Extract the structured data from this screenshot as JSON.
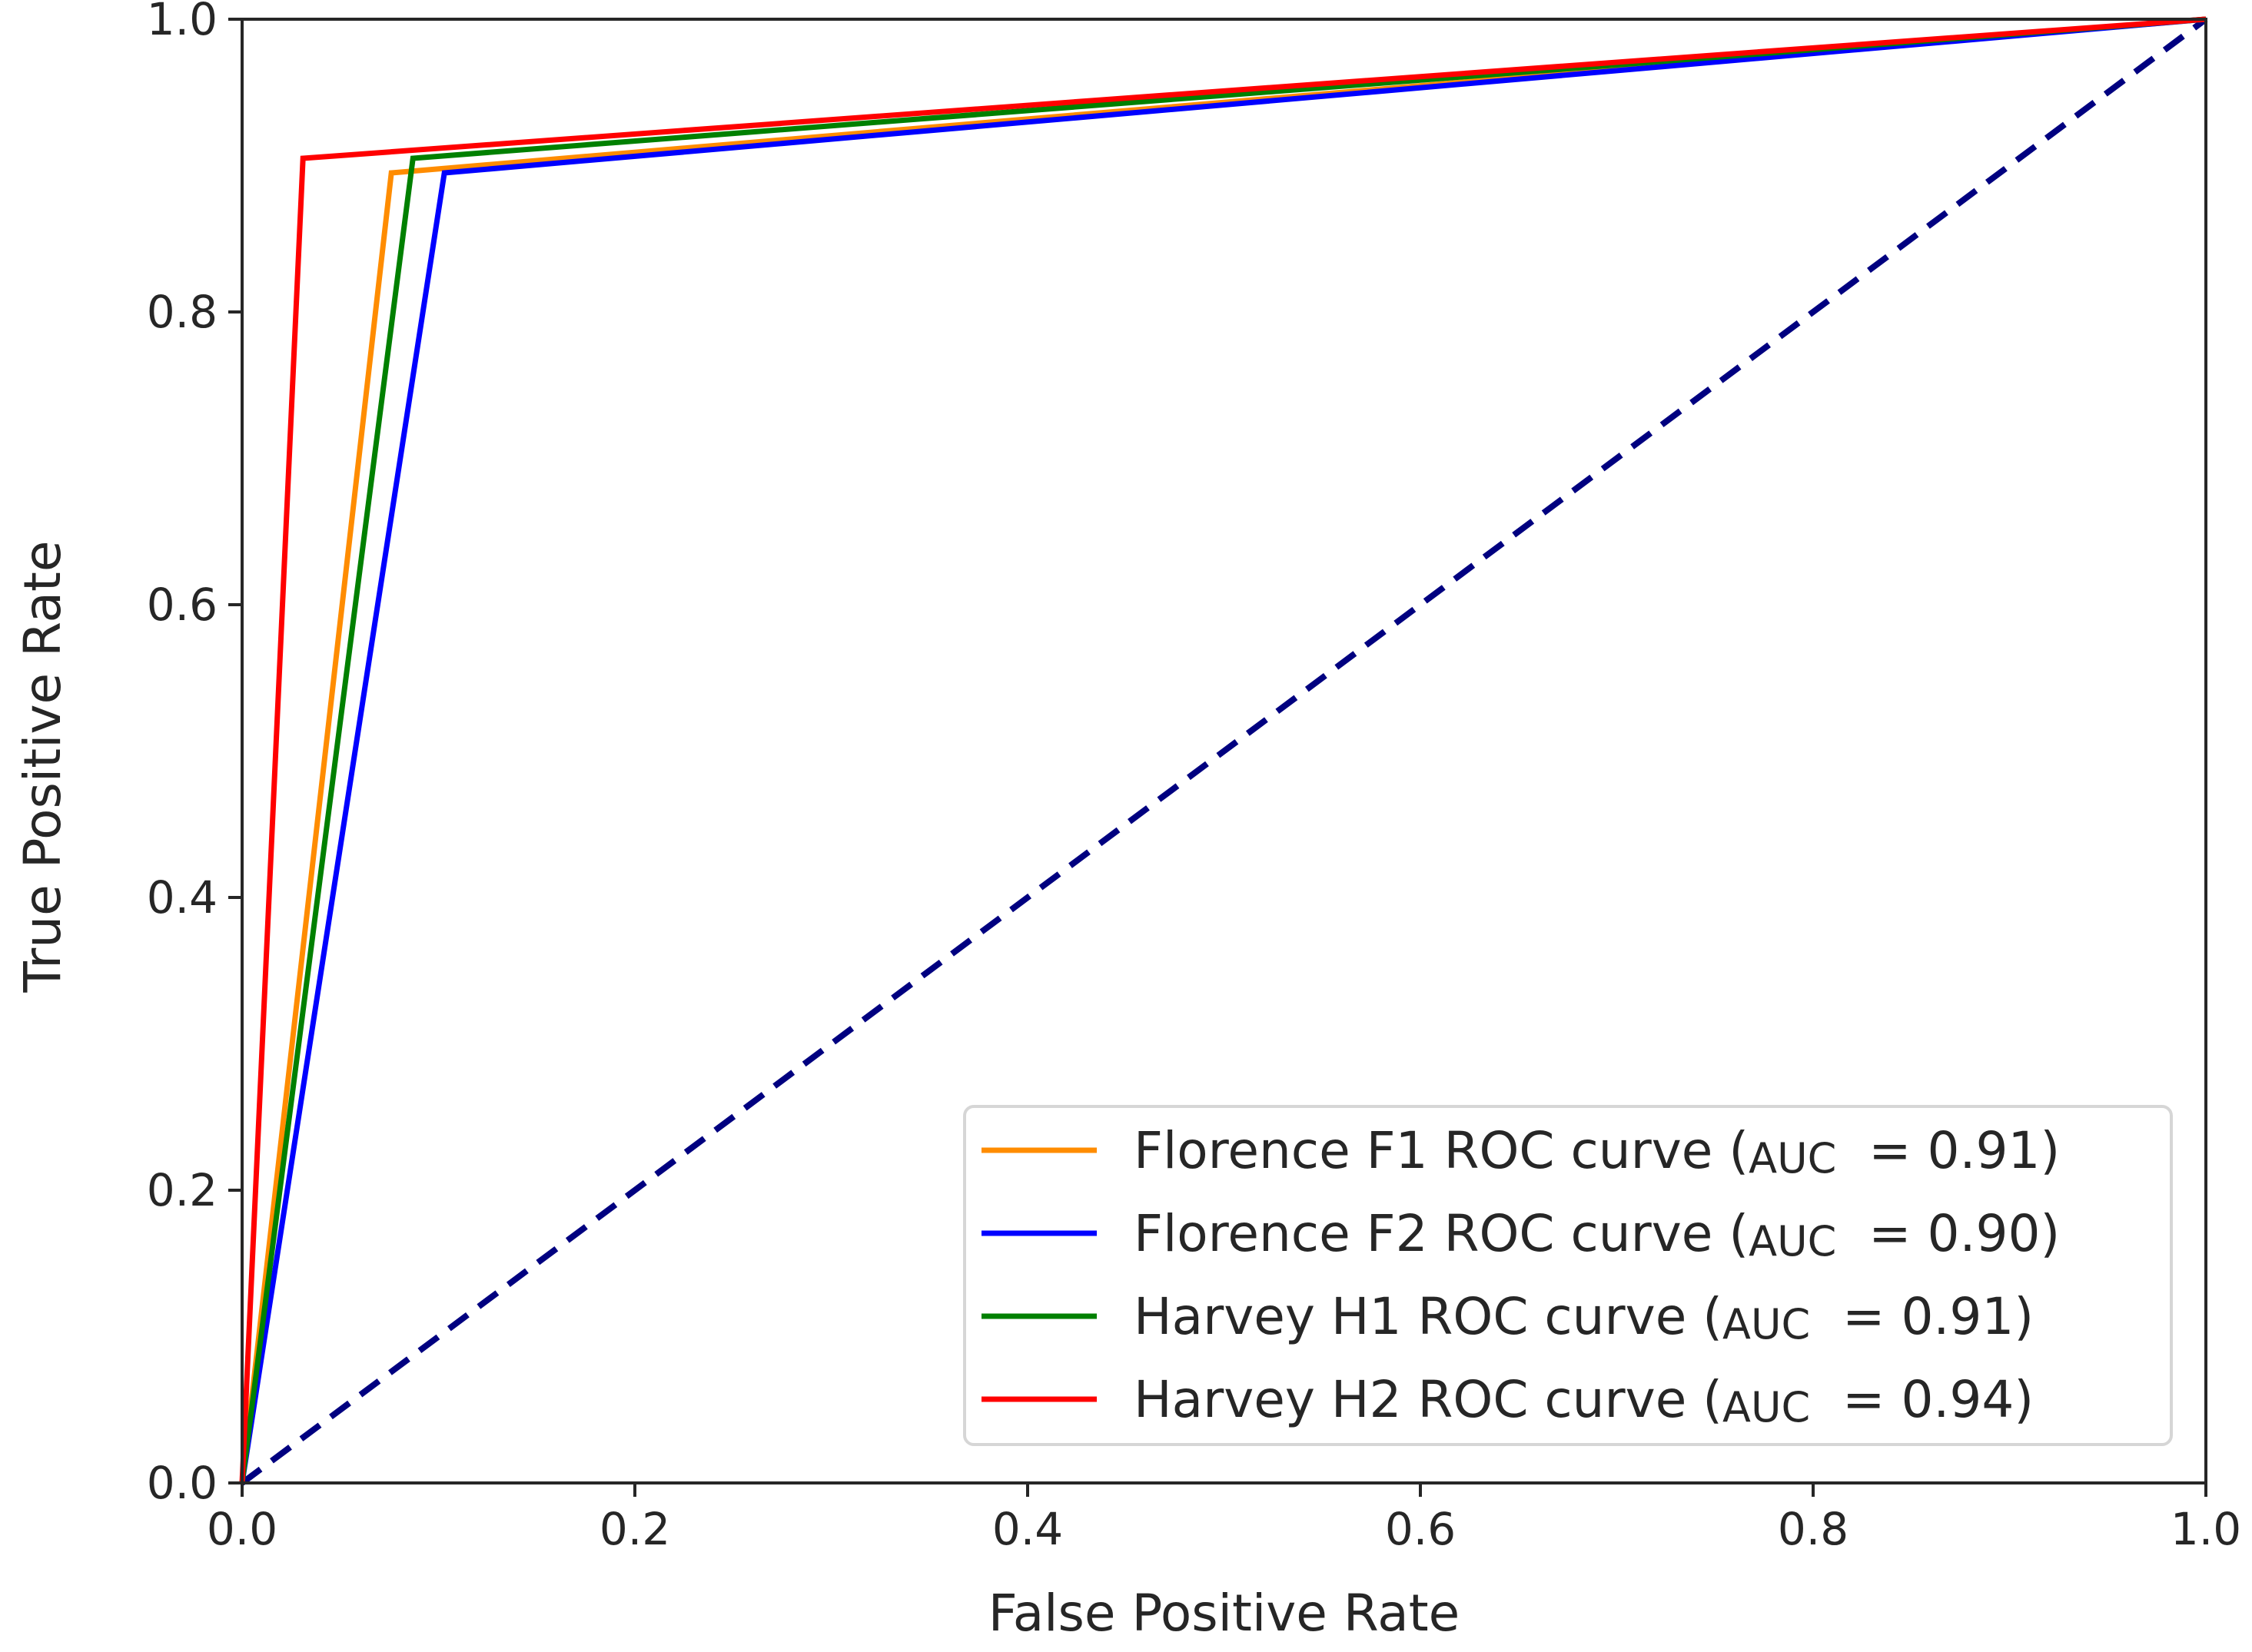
{
  "chart_data": {
    "type": "line",
    "title": "",
    "xlabel": "False Positive Rate",
    "ylabel": "True Positive Rate",
    "xlim": [
      0.0,
      1.0
    ],
    "ylim": [
      0.0,
      1.0
    ],
    "xticks": [
      0.0,
      0.2,
      0.4,
      0.6,
      0.8,
      1.0
    ],
    "yticks": [
      0.0,
      0.2,
      0.4,
      0.6,
      0.8,
      1.0
    ],
    "xtick_labels": [
      "0.0",
      "0.2",
      "0.4",
      "0.6",
      "0.8",
      "1.0"
    ],
    "ytick_labels": [
      "0.0",
      "0.2",
      "0.4",
      "0.6",
      "0.8",
      "1.0"
    ],
    "grid": false,
    "legend_position": "bottom-right",
    "series": [
      {
        "name": "Florence F1 ROC curve",
        "legend_prefix": "Florence F1 ROC curve (",
        "legend_auc": "AUC",
        "legend_value": " = 0.91)",
        "color": "#ff8c00",
        "x": [
          0.0,
          0.076,
          1.0
        ],
        "y": [
          0.0,
          0.895,
          1.0
        ]
      },
      {
        "name": "Florence F2 ROC curve",
        "legend_prefix": "Florence F2 ROC curve (",
        "legend_auc": "AUC",
        "legend_value": " = 0.90)",
        "color": "#0000ff",
        "x": [
          0.0,
          0.103,
          1.0
        ],
        "y": [
          0.0,
          0.895,
          1.0
        ]
      },
      {
        "name": "Harvey H1 ROC curve",
        "legend_prefix": "Harvey H1 ROC curve (",
        "legend_auc": "AUC",
        "legend_value": " = 0.91)",
        "color": "#008000",
        "x": [
          0.0,
          0.087,
          1.0
        ],
        "y": [
          0.0,
          0.905,
          1.0
        ]
      },
      {
        "name": "Harvey H2 ROC curve",
        "legend_prefix": "Harvey H2 ROC curve (",
        "legend_auc": "AUC",
        "legend_value": " = 0.94)",
        "color": "#ff0000",
        "x": [
          0.0,
          0.031,
          1.0
        ],
        "y": [
          0.0,
          0.905,
          1.0
        ]
      }
    ],
    "reference_line": {
      "name": "chance diagonal",
      "color": "#000080",
      "style": "dashed",
      "x": [
        0.0,
        1.0
      ],
      "y": [
        0.0,
        1.0
      ]
    }
  }
}
